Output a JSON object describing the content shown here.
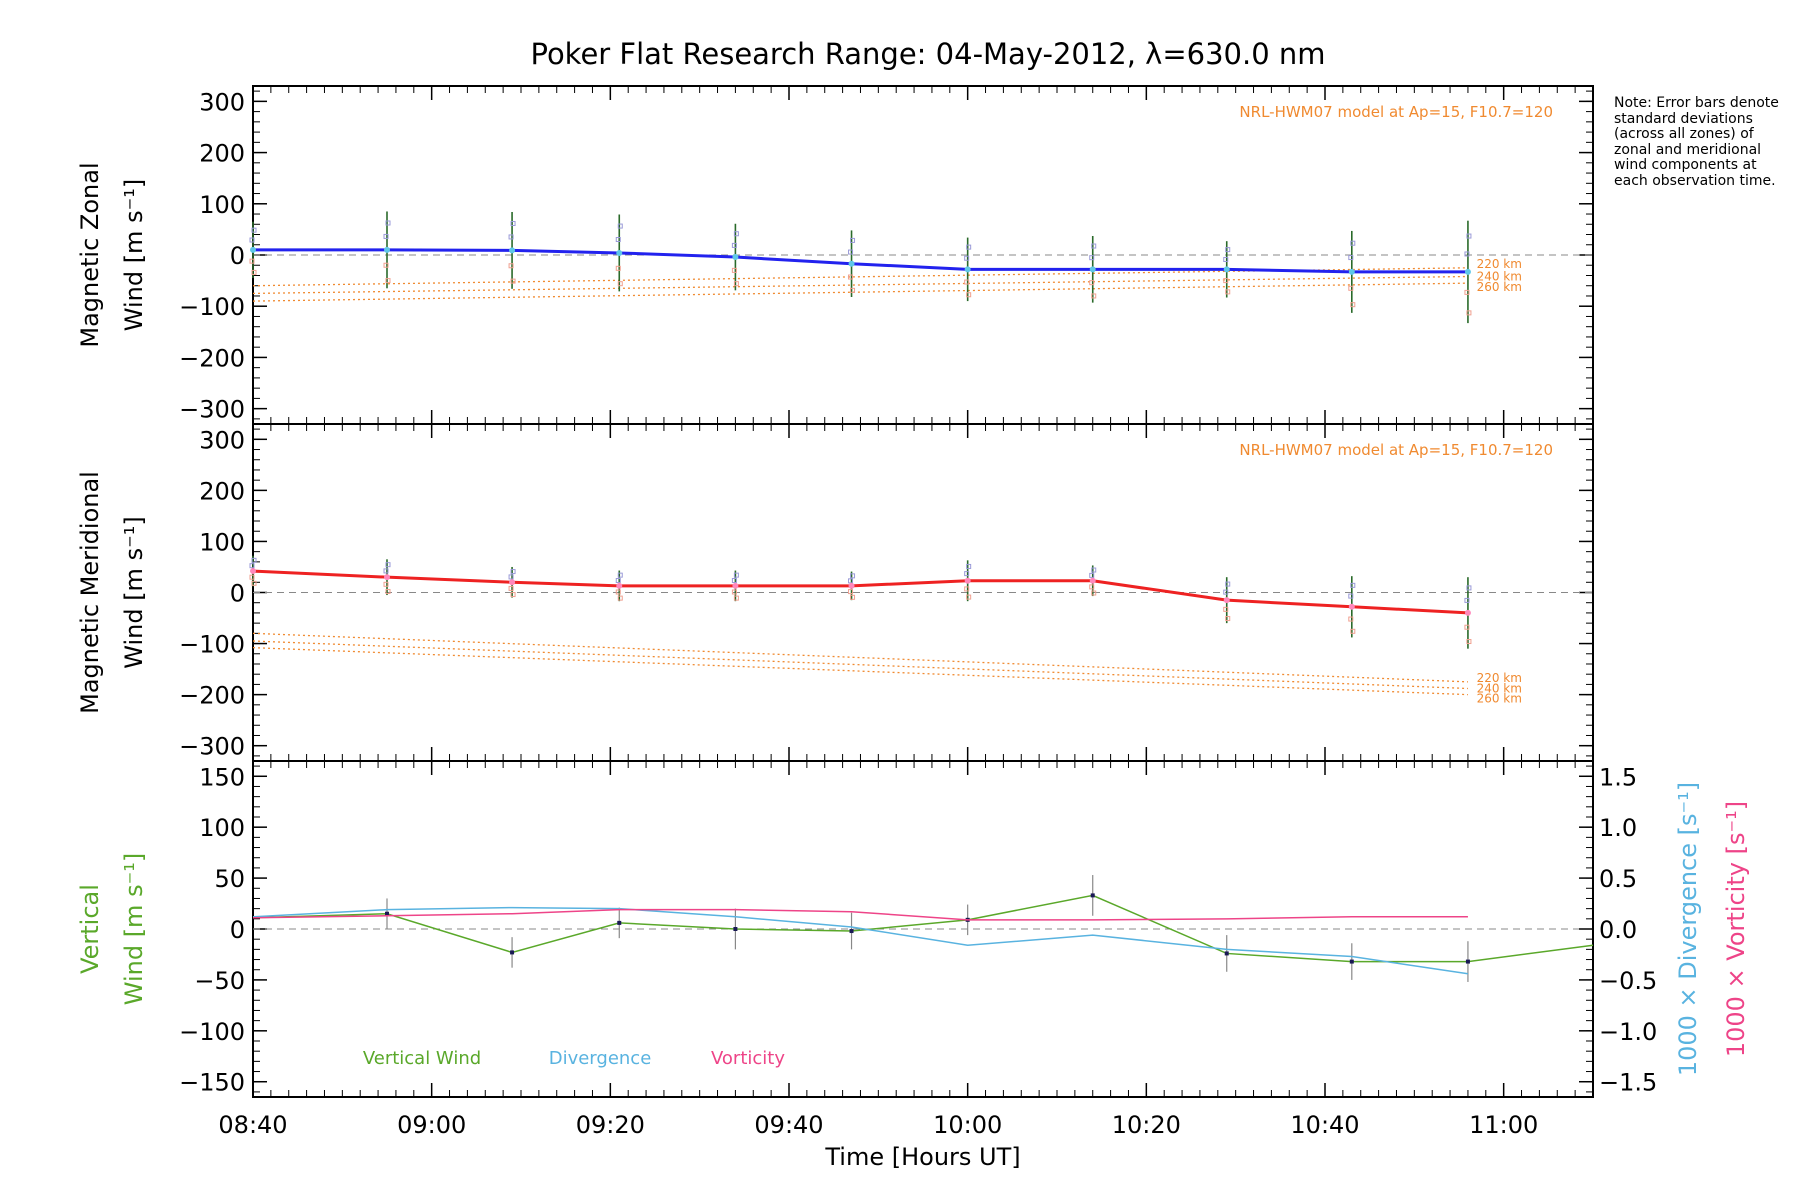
{
  "title": "Poker Flat Research Range: 04-May-2012, λ=630.0 nm",
  "note": "Note: Error bars denote standard deviations (across all zones) of zonal and meridional wind components at each observation time.",
  "colors": {
    "zonal": "#2222ee",
    "meridional": "#ee2222",
    "model": "#f08a30",
    "vertical": "#5aa82a",
    "divergence": "#59b3e0",
    "vorticity": "#ee4488",
    "errorbar": "#888888",
    "zeroline": "#888888"
  },
  "chart_data": [
    {
      "type": "line",
      "panel": "zonal",
      "ylabel_line1": "Magnetic Zonal",
      "ylabel_line2": "Wind [m s⁻¹]",
      "ylim": [
        -330,
        330
      ],
      "yticks": [
        -300,
        -200,
        -100,
        0,
        100,
        200,
        300
      ],
      "tick_labels": [
        "−300",
        "−200",
        "−100",
        "0",
        "100",
        "200",
        "300"
      ],
      "model_label": "NRL-HWM07 model at Ap=15, F10.7=120",
      "series": [
        {
          "x": [
            "08:40",
            "08:55",
            "09:09",
            "09:21",
            "09:34",
            "09:47",
            "10:00",
            "10:14",
            "10:29",
            "10:43",
            "10:56"
          ],
          "values": [
            10,
            10,
            9,
            4,
            -4,
            -17,
            -28,
            -28,
            -28,
            -33,
            -33
          ],
          "errors": [
            55,
            75,
            75,
            75,
            65,
            65,
            62,
            65,
            55,
            80,
            100
          ]
        }
      ],
      "model_series": [
        {
          "name": "220 km",
          "x": [
            "08:40",
            "10:56"
          ],
          "values": [
            -60,
            -25
          ]
        },
        {
          "name": "240 km",
          "x": [
            "08:40",
            "10:56"
          ],
          "values": [
            -75,
            -42
          ]
        },
        {
          "name": "260 km",
          "x": [
            "08:40",
            "10:56"
          ],
          "values": [
            -90,
            -55
          ]
        }
      ]
    },
    {
      "type": "line",
      "panel": "meridional",
      "ylabel_line1": "Magnetic Meridional",
      "ylabel_line2": "Wind [m s⁻¹]",
      "ylim": [
        -330,
        330
      ],
      "yticks": [
        -300,
        -200,
        -100,
        0,
        100,
        200,
        300
      ],
      "tick_labels": [
        "−300",
        "−200",
        "−100",
        "0",
        "100",
        "200",
        "300"
      ],
      "model_label": "NRL-HWM07 model at Ap=15, F10.7=120",
      "series": [
        {
          "x": [
            "08:40",
            "08:55",
            "09:09",
            "09:21",
            "09:34",
            "09:47",
            "10:00",
            "10:14",
            "10:29",
            "10:43",
            "10:56"
          ],
          "values": [
            42,
            30,
            20,
            13,
            13,
            13,
            23,
            23,
            -15,
            -28,
            -40
          ],
          "errors": [
            30,
            35,
            30,
            30,
            30,
            28,
            40,
            30,
            45,
            60,
            70
          ]
        }
      ],
      "model_series": [
        {
          "name": "220 km",
          "x": [
            "08:40",
            "10:56"
          ],
          "values": [
            -80,
            -175
          ]
        },
        {
          "name": "240 km",
          "x": [
            "08:40",
            "10:56"
          ],
          "values": [
            -95,
            -188
          ]
        },
        {
          "name": "260 km",
          "x": [
            "08:40",
            "10:56"
          ],
          "values": [
            -108,
            -200
          ]
        }
      ]
    },
    {
      "type": "line",
      "panel": "vertical",
      "ylabel_line1": "Vertical",
      "ylabel_line2": "Wind [m s⁻¹]",
      "ylim": [
        -165,
        165
      ],
      "yticks": [
        -150,
        -100,
        -50,
        0,
        50,
        100,
        150
      ],
      "tick_labels": [
        "−150",
        "−100",
        "−50",
        "0",
        "50",
        "100",
        "150"
      ],
      "y2label_div": "1000 × Divergence [s⁻¹]",
      "y2label_vor": "1000 × Vorticity [s⁻¹]",
      "y2lim": [
        -1.65,
        1.65
      ],
      "y2ticks": [
        -1.5,
        -1.0,
        -0.5,
        0.0,
        0.5,
        1.0,
        1.5
      ],
      "y2tick_labels": [
        "−1.5",
        "−1.0",
        "−0.5",
        "0.0",
        "0.5",
        "1.0",
        "1.5"
      ],
      "legend": [
        "Vertical Wind",
        "Divergence",
        "Vorticity"
      ],
      "series": [
        {
          "name": "Vertical Wind",
          "x": [
            "08:40",
            "08:55",
            "09:09",
            "09:21",
            "09:34",
            "09:47",
            "10:00",
            "10:14",
            "10:29",
            "10:43",
            "10:56",
            "11:10"
          ],
          "values": [
            11,
            15,
            -23,
            6,
            0,
            -2,
            9,
            33,
            -24,
            -32,
            -32,
            -16
          ],
          "errors": [
            0,
            15,
            15,
            15,
            20,
            18,
            15,
            20,
            18,
            18,
            20,
            0
          ]
        },
        {
          "name": "Divergence",
          "x": [
            "08:40",
            "08:55",
            "09:09",
            "09:21",
            "09:34",
            "09:47",
            "10:00",
            "10:14",
            "10:29",
            "10:43",
            "10:56"
          ],
          "values": [
            0.12,
            0.19,
            0.21,
            0.2,
            0.12,
            0.02,
            -0.16,
            -0.06,
            -0.2,
            -0.27,
            -0.44
          ]
        },
        {
          "name": "Vorticity",
          "x": [
            "08:40",
            "08:55",
            "09:09",
            "09:21",
            "09:34",
            "09:47",
            "10:00",
            "10:14",
            "10:29",
            "10:43",
            "10:56"
          ],
          "values": [
            0.11,
            0.13,
            0.15,
            0.19,
            0.19,
            0.17,
            0.09,
            0.09,
            0.1,
            0.12,
            0.12
          ]
        }
      ]
    }
  ],
  "xaxis": {
    "label": "Time [Hours UT]",
    "tick_labels": [
      "08:40",
      "09:00",
      "09:20",
      "09:40",
      "10:00",
      "10:20",
      "10:40",
      "11:00"
    ],
    "tick_times": [
      "08:40",
      "09:00",
      "09:20",
      "09:40",
      "10:00",
      "10:20",
      "10:40",
      "11:00"
    ],
    "xlim": [
      "08:40",
      "11:10"
    ]
  }
}
